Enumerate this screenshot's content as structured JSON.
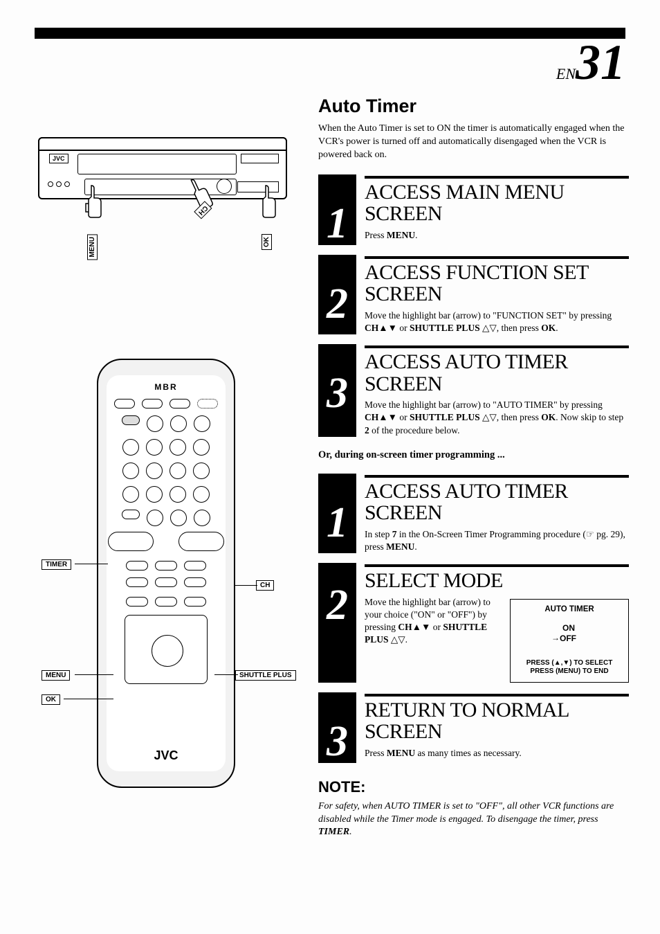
{
  "page": {
    "prefix": "EN",
    "number": "31"
  },
  "section": {
    "title": "Auto Timer",
    "intro": "When the Auto Timer is set to ON the timer is automatically engaged when the VCR's power is turned off and automatically disengaged when the VCR is powered back on."
  },
  "vcr": {
    "brand": "JVC",
    "labels": {
      "menu": "MENU",
      "ch": "CH",
      "ok": "OK"
    }
  },
  "remote": {
    "top_brand": "MBR",
    "bottom_brand": "JVC",
    "callouts": {
      "timer": "TIMER",
      "ch": "CH",
      "menu": "MENU",
      "ok": "OK",
      "shuttle": "SHUTTLE PLUS"
    }
  },
  "steps_a": [
    {
      "num": "1",
      "heading": "ACCESS MAIN MENU SCREEN",
      "body_html": "Press <b>MENU</b>."
    },
    {
      "num": "2",
      "heading": "ACCESS FUNCTION SET SCREEN",
      "body_html": "Move the highlight bar (arrow) to \"FUNCTION SET\" by pressing <b>CH</b>▲▼ or <b>SHUTTLE PLUS</b> △▽, then press <b>OK</b>."
    },
    {
      "num": "3",
      "heading": "ACCESS AUTO TIMER SCREEN",
      "body_html": "Move the highlight bar (arrow) to \"AUTO TIMER\" by pressing <b>CH</b>▲▼ or <b>SHUTTLE PLUS</b> △▽, then press <b>OK</b>. Now skip to step <b>2</b> of the procedure below."
    }
  ],
  "interstitial": "Or, during on-screen timer programming ...",
  "steps_b": [
    {
      "num": "1",
      "heading": "ACCESS AUTO TIMER SCREEN",
      "body_html": "In step <b>7</b> in the On-Screen Timer Programming procedure (☞ pg. 29), press <b>MENU</b>."
    },
    {
      "num": "2",
      "heading": "SELECT MODE",
      "body_html": "Move the highlight bar (arrow) to your choice (\"ON\" or \"OFF\") by pressing <b>CH</b>▲▼ or <b>SHUTTLE PLUS</b> △▽.",
      "osd": {
        "title": "AUTO TIMER",
        "on": "ON",
        "off": "OFF",
        "arrow": "→",
        "foot1": "PRESS (▲,▼) TO SELECT",
        "foot2": "PRESS (MENU) TO END"
      }
    },
    {
      "num": "3",
      "heading": "RETURN TO NORMAL SCREEN",
      "body_html": "Press <b>MENU</b> as many times as necessary."
    }
  ],
  "note": {
    "title": "NOTE:",
    "body_html": "For safety, when AUTO TIMER is set to \"OFF\", all other VCR functions are disabled while the Timer mode is engaged. To disengage the timer, press <b>TIMER</b>."
  }
}
